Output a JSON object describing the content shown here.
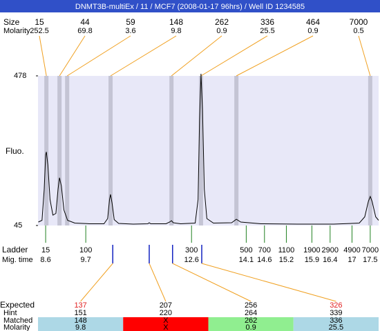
{
  "chart_data": {
    "type": "electropherogram",
    "title": "DNMT3B-multiEx / 11 / MCF7 (2008-01-17 96hrs) / Well ID 1234585",
    "y_label": "Fluo.",
    "xlim": [
      8.39,
      17.73
    ],
    "ylim": [
      45,
      478
    ],
    "yticks": [
      45,
      478
    ],
    "trace_color": "#000000",
    "plot_color": "#e8e8f8",
    "band_color": "#c4c4d4",
    "connector_color": "#f0a020",
    "trace": {
      "x": [
        8.4,
        8.5,
        8.56,
        8.6,
        8.62,
        8.66,
        8.72,
        8.8,
        8.88,
        8.94,
        8.98,
        9.03,
        9.1,
        9.2,
        9.4,
        9.8,
        10.2,
        10.3,
        10.35,
        10.38,
        10.42,
        10.48,
        10.6,
        11.0,
        11.4,
        11.44,
        11.48,
        11.9,
        12.0,
        12.05,
        12.1,
        12.3,
        12.7,
        12.78,
        12.82,
        12.86,
        12.9,
        12.95,
        13.02,
        13.2,
        13.7,
        13.83,
        13.95,
        14.5,
        15.5,
        16.5,
        17.2,
        17.35,
        17.45,
        17.5,
        17.55,
        17.65,
        17.73
      ],
      "values": [
        55,
        60,
        150,
        250,
        258,
        220,
        120,
        75,
        80,
        150,
        183,
        160,
        90,
        60,
        52,
        50,
        50,
        65,
        120,
        135,
        110,
        62,
        51,
        49,
        50,
        53,
        50,
        50,
        55,
        59,
        53,
        50,
        52,
        120,
        350,
        484,
        380,
        150,
        65,
        52,
        53,
        63,
        55,
        50,
        49,
        49,
        52,
        70,
        115,
        129,
        115,
        70,
        60
      ]
    },
    "peaks": {
      "size_label": "Size",
      "molarity_label": "Molarity",
      "sizes": [
        15,
        44,
        59,
        148,
        262,
        336,
        464,
        7000
      ],
      "molarity": [
        252.5,
        69.8,
        3.6,
        9.8,
        0.9,
        25.5,
        0.9,
        0.5
      ],
      "mig_times": [
        8.62,
        8.98,
        9.19,
        10.38,
        12.05,
        12.86,
        13.83,
        17.5
      ]
    },
    "ladder": {
      "label": "Ladder",
      "time_label": "Mig. time",
      "color": "#208020",
      "sizes": [
        15,
        100,
        300,
        500,
        700,
        1100,
        1900,
        2900,
        4900,
        7000
      ],
      "mig_times": [
        8.6,
        9.7,
        12.6,
        14.1,
        14.6,
        15.2,
        15.9,
        16.4,
        17,
        17.5
      ]
    },
    "expected": {
      "labels": [
        "Expected",
        "Hint",
        "Matched",
        "Molarity"
      ],
      "marker_color": "#1020c0",
      "values": [
        137,
        207,
        256,
        326
      ],
      "value_colors": [
        "#e02020",
        "#000000",
        "#000000",
        "#e02020"
      ],
      "hints": [
        151,
        220,
        264,
        339
      ],
      "matched": [
        148,
        "X",
        262,
        336
      ],
      "molarity": [
        9.8,
        "X",
        0.9,
        25.5
      ],
      "status_colors": [
        "#add8e6",
        "#ff0000",
        "#90ee90",
        "#add8e6"
      ],
      "mig_times": [
        10.44,
        11.44,
        12.08,
        12.88
      ]
    }
  }
}
